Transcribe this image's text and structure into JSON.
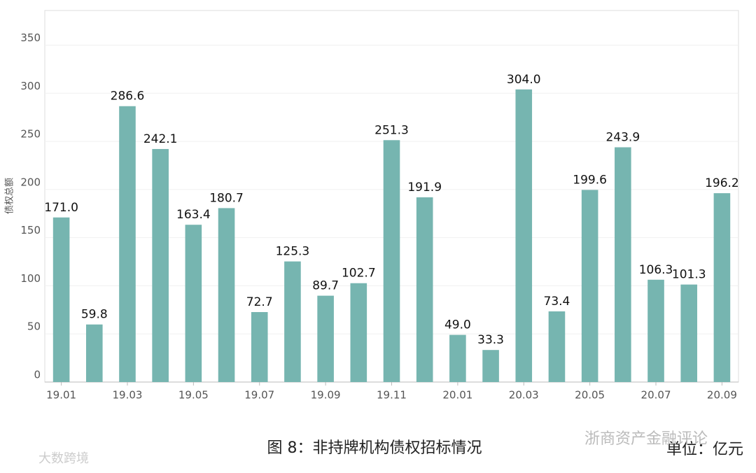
{
  "chart_data": {
    "type": "bar",
    "caption": "图 8：非持牌机构债权招标情况",
    "unit": "单位：亿元",
    "y_label": "债权总额",
    "watermarks": [
      "浙商资产金融评论",
      "大数跨境"
    ],
    "categories": [
      "19.01",
      null,
      "19.03",
      null,
      "19.05",
      null,
      "19.07",
      null,
      "19.09",
      null,
      "19.11",
      null,
      "20.01",
      null,
      "20.03",
      null,
      "20.05",
      null,
      "20.07",
      null,
      "20.09"
    ],
    "values": [
      171.0,
      59.8,
      286.6,
      242.1,
      163.4,
      180.7,
      72.7,
      125.3,
      89.7,
      102.7,
      251.3,
      191.9,
      49.0,
      33.3,
      304.0,
      73.4,
      199.6,
      243.9,
      106.3,
      101.3,
      196.2
    ],
    "value_labels": [
      "171.0",
      "59.8",
      "286.6",
      "242.1",
      "163.4",
      "180.7",
      "72.7",
      "125.3",
      "89.7",
      "102.7",
      "251.3",
      "191.9",
      "49.0",
      "33.3",
      "304.0",
      "73.4",
      "199.6",
      "243.9",
      "106.3",
      "101.3",
      "196.2"
    ],
    "color": "#76b5b0",
    "ylim": [
      0,
      386
    ],
    "yticks": [
      0,
      50,
      100,
      150,
      200,
      250,
      300,
      350
    ],
    "grid": true
  }
}
